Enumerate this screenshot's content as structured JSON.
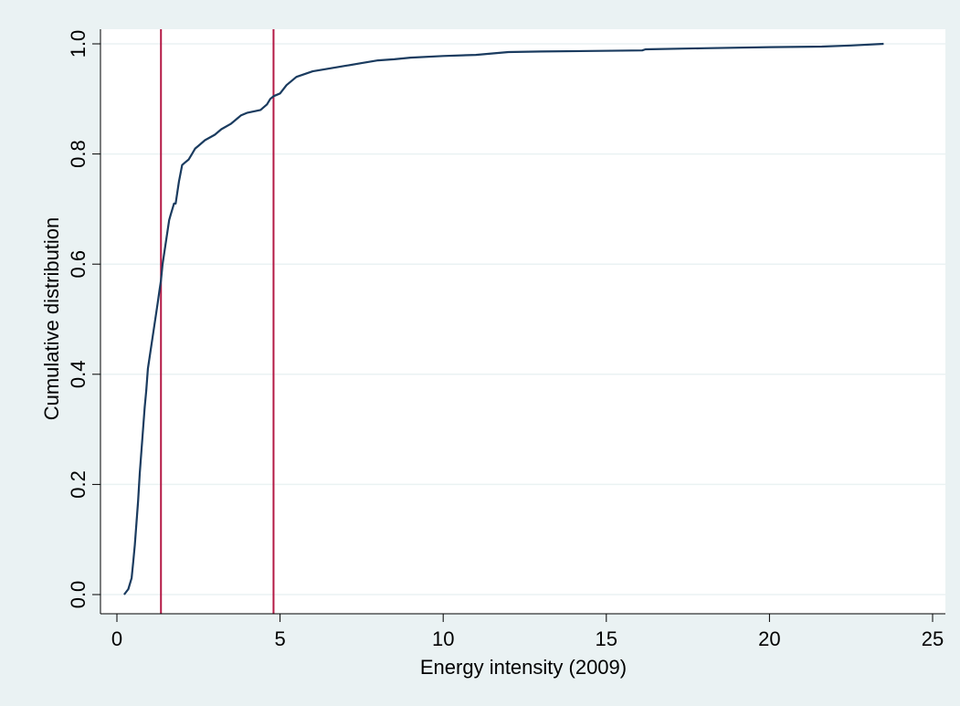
{
  "chart_data": {
    "type": "line",
    "title": "",
    "xlabel": "Energy intensity (2009)",
    "ylabel": "Cumulative distribution",
    "xlim": [
      0,
      25
    ],
    "ylim": [
      0,
      1
    ],
    "x_ticks": [
      0,
      5,
      10,
      15,
      20,
      25
    ],
    "x_tick_labels": [
      "0",
      "5",
      "10",
      "15",
      "20",
      "25"
    ],
    "y_ticks": [
      0,
      0.2,
      0.4,
      0.6,
      0.8,
      1.0
    ],
    "y_tick_labels": [
      "0.0",
      "0.2",
      "0.4",
      "0.6",
      "0.8",
      "1.0"
    ],
    "grid": "horizontal",
    "legend": "none",
    "series": [
      {
        "color": "#1a3b5f",
        "x": [
          0.22,
          0.35,
          0.45,
          0.5,
          0.55,
          0.6,
          0.65,
          0.7,
          0.75,
          0.8,
          0.85,
          0.9,
          0.95,
          1.0,
          1.05,
          1.1,
          1.15,
          1.2,
          1.25,
          1.3,
          1.35,
          1.4,
          1.45,
          1.5,
          1.55,
          1.6,
          1.65,
          1.7,
          1.75,
          1.8,
          1.85,
          1.9,
          2.0,
          2.1,
          2.2,
          2.3,
          2.4,
          2.5,
          2.7,
          2.85,
          3.0,
          3.2,
          3.5,
          3.7,
          3.8,
          4.0,
          4.4,
          4.6,
          4.7,
          4.8,
          5.0,
          5.2,
          5.5,
          6.0,
          6.5,
          7.0,
          7.5,
          8.0,
          8.5,
          9.0,
          10.0,
          11.0,
          12.0,
          13.0,
          16.1,
          16.2,
          18.0,
          20.0,
          21.6,
          22.5,
          23.5
        ],
        "y": [
          0.0,
          0.01,
          0.03,
          0.06,
          0.09,
          0.13,
          0.17,
          0.22,
          0.26,
          0.3,
          0.34,
          0.37,
          0.41,
          0.43,
          0.45,
          0.47,
          0.49,
          0.51,
          0.53,
          0.55,
          0.57,
          0.6,
          0.62,
          0.64,
          0.66,
          0.68,
          0.69,
          0.7,
          0.71,
          0.71,
          0.73,
          0.75,
          0.78,
          0.785,
          0.79,
          0.8,
          0.81,
          0.815,
          0.825,
          0.83,
          0.835,
          0.845,
          0.855,
          0.865,
          0.87,
          0.875,
          0.88,
          0.89,
          0.9,
          0.905,
          0.91,
          0.925,
          0.94,
          0.95,
          0.955,
          0.96,
          0.965,
          0.97,
          0.972,
          0.975,
          0.978,
          0.98,
          0.985,
          0.986,
          0.988,
          0.99,
          0.992,
          0.994,
          0.995,
          0.997,
          1.0
        ]
      }
    ],
    "vertical_lines": [
      {
        "x": 1.35,
        "color": "#b41945"
      },
      {
        "x": 4.8,
        "color": "#b41945"
      }
    ]
  }
}
